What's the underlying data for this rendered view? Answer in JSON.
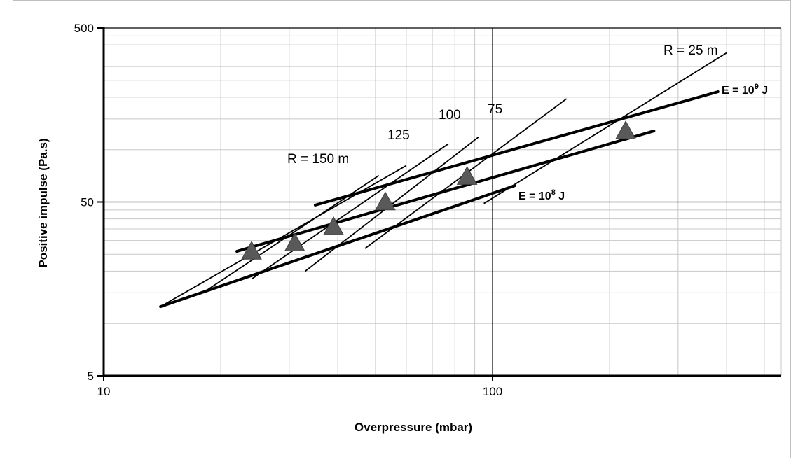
{
  "chart_data": {
    "type": "scatter",
    "xlabel": "Overpressure (mbar)",
    "ylabel": "Positive impulse (Pa.s)",
    "x_scale": "log",
    "y_scale": "log",
    "xlim": [
      10,
      500
    ],
    "ylim": [
      5,
      500
    ],
    "x_ticks": [
      "10",
      "100"
    ],
    "y_ticks": [
      "5",
      "50",
      "500"
    ],
    "grid": true,
    "legend": "none",
    "points": [
      {
        "x": 24,
        "y": 26
      },
      {
        "x": 31,
        "y": 29
      },
      {
        "x": 39,
        "y": 36
      },
      {
        "x": 53,
        "y": 50
      },
      {
        "x": 86,
        "y": 70
      },
      {
        "x": 220,
        "y": 128
      }
    ],
    "energy_lines": [
      {
        "label": "E = 10",
        "exp": "9",
        "unit": " J",
        "x": [
          35,
          380
        ],
        "y": [
          48,
          215
        ]
      },
      {
        "label": "",
        "exp": "",
        "unit": "",
        "x": [
          22,
          260
        ],
        "y": [
          26,
          128
        ]
      },
      {
        "label": "E = 10",
        "exp": "8",
        "unit": " J",
        "x": [
          14,
          114
        ],
        "y": [
          12.5,
          62
        ]
      }
    ],
    "distance_lines": [
      {
        "label": "R = 25 m",
        "x": [
          95,
          400
        ],
        "y": [
          49,
          360
        ]
      },
      {
        "label": "75",
        "x": [
          47,
          155
        ],
        "y": [
          27,
          196
        ]
      },
      {
        "label": "100",
        "x": [
          33,
          92
        ],
        "y": [
          20,
          118
        ]
      },
      {
        "label": "125",
        "x": [
          24,
          77
        ],
        "y": [
          18,
          108
        ]
      },
      {
        "label": "R  = 150 m",
        "x": [
          14,
          60
        ],
        "y": [
          12.5,
          81
        ]
      },
      {
        "label": "",
        "x": [
          18,
          51
        ],
        "y": [
          15,
          71
        ]
      }
    ],
    "series_colors": {
      "points": "#595959",
      "lines": "#000000",
      "grid": "#c8c8c8"
    }
  }
}
